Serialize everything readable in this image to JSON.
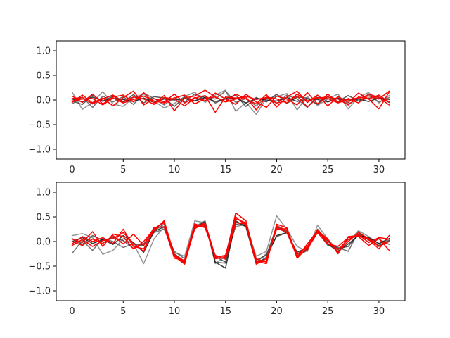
{
  "chart_data": [
    {
      "type": "line",
      "xlim": [
        -1.55,
        32.55
      ],
      "ylim": [
        -1.2,
        1.2
      ],
      "xticks": [
        0,
        5,
        10,
        15,
        20,
        25,
        30
      ],
      "xtick_labels": [
        "0",
        "5",
        "10",
        "15",
        "20",
        "25",
        "30"
      ],
      "yticks": [
        -1.0,
        -0.5,
        0.0,
        0.5,
        1.0
      ],
      "ytick_labels": [
        "−1.0",
        "−0.5",
        "0.0",
        "0.5",
        "1.0"
      ],
      "x": [
        0,
        1,
        2,
        3,
        4,
        5,
        6,
        7,
        8,
        9,
        10,
        11,
        12,
        13,
        14,
        15,
        16,
        17,
        18,
        19,
        20,
        21,
        22,
        23,
        24,
        25,
        26,
        27,
        28,
        29,
        30,
        31
      ],
      "series": [
        {
          "color": "#808080",
          "values": [
            0.16,
            -0.19,
            -0.05,
            0.17,
            -0.08,
            -0.13,
            0.05,
            0.12,
            -0.02,
            -0.16,
            -0.07,
            0.07,
            0.16,
            -0.05,
            0.1,
            0.2,
            -0.23,
            -0.05,
            -0.29,
            0.03,
            0.07,
            0.13,
            -0.2,
            0.07,
            -0.11,
            0.02,
            0.12,
            -0.18,
            0.06,
            0.15,
            -0.06,
            0.09
          ]
        },
        {
          "color": "#5a5a5a",
          "values": [
            -0.08,
            0.06,
            -0.15,
            0.08,
            -0.04,
            0.07,
            -0.09,
            0.14,
            0.03,
            -0.1,
            0.05,
            -0.04,
            0.12,
            0.05,
            0.02,
            0.18,
            -0.05,
            0.03,
            -0.12,
            0.06,
            -0.07,
            0.1,
            0.02,
            -0.15,
            0.09,
            -0.03,
            0.05,
            -0.08,
            0.02,
            0.11,
            -0.04,
            0.05
          ]
        },
        {
          "color": "#3c3c3c",
          "values": [
            -0.02,
            -0.09,
            0.1,
            -0.03,
            0.08,
            -0.05,
            0.11,
            -0.06,
            0.07,
            0.04,
            -0.13,
            0.06,
            -0.02,
            0.09,
            -0.06,
            0.03,
            0.1,
            -0.13,
            0.05,
            -0.04,
            0.12,
            -0.07,
            0.06,
            0.04,
            -0.09,
            0.07,
            -0.03,
            0.09,
            -0.02,
            0.04,
            0.06,
            -0.05
          ]
        },
        {
          "color": "#1a1a1a",
          "values": [
            0.02,
            -0.04,
            0.06,
            -0.02,
            0.03,
            0.01,
            -0.03,
            0.04,
            -0.05,
            0.02,
            0.0,
            0.03,
            -0.02,
            0.05,
            -0.03,
            0.02,
            0.04,
            -0.06,
            0.03,
            0.0,
            -0.02,
            0.05,
            -0.03,
            0.02,
            0.01,
            -0.04,
            0.03,
            0.0,
            0.02,
            -0.03,
            0.04,
            0.01
          ]
        },
        {
          "color": "#ff0000",
          "values": [
            0.08,
            -0.05,
            0.12,
            -0.08,
            0.06,
            0.1,
            -0.04,
            0.15,
            -0.06,
            0.09,
            -0.22,
            0.04,
            0.08,
            0.2,
            0.06,
            -0.03,
            0.12,
            0.02,
            -0.08,
            0.11,
            -0.14,
            0.06,
            0.18,
            -0.05,
            0.1,
            -0.12,
            0.07,
            -0.05,
            0.14,
            0.02,
            -0.18,
            0.16
          ]
        },
        {
          "color": "#ff0000",
          "values": [
            -0.05,
            0.1,
            -0.06,
            0.04,
            -0.12,
            0.05,
            0.18,
            -0.1,
            0.03,
            -0.04,
            0.12,
            -0.06,
            0.05,
            -0.02,
            0.14,
            0.02,
            -0.09,
            0.12,
            -0.04,
            -0.15,
            0.08,
            0.02,
            -0.1,
            0.15,
            -0.08,
            0.12,
            -0.05,
            0.03,
            -0.06,
            0.12,
            0.05,
            -0.1
          ]
        },
        {
          "color": "#ff0000",
          "values": [
            0.03,
            0.05,
            -0.08,
            0.02,
            0.1,
            -0.03,
            0.06,
            0.02,
            -0.09,
            0.05,
            0.02,
            -0.12,
            0.04,
            0.09,
            -0.25,
            0.06,
            0.04,
            0.06,
            -0.2,
            0.06,
            0.02,
            -0.06,
            0.12,
            -0.02,
            0.05,
            0.03,
            -0.06,
            0.01,
            0.04,
            0.08,
            0.02,
            0.18
          ]
        },
        {
          "color": "#ff0000",
          "values": [
            -0.02,
            0.02,
            0.03,
            -0.1,
            0.04,
            -0.06,
            0.01,
            0.08,
            -0.02,
            -0.06,
            0.04,
            0.1,
            -0.08,
            0.03,
            0.06,
            -0.04,
            0.02,
            0.08,
            0.01,
            0.05,
            -0.06,
            -0.02,
            0.08,
            -0.14,
            0.04,
            0.06,
            0.02,
            -0.1,
            0.06,
            0.02,
            0.1,
            -0.04
          ]
        }
      ]
    },
    {
      "type": "line",
      "xlim": [
        -1.55,
        32.55
      ],
      "ylim": [
        -1.2,
        1.2
      ],
      "xticks": [
        0,
        5,
        10,
        15,
        20,
        25,
        30
      ],
      "xtick_labels": [
        "0",
        "5",
        "10",
        "15",
        "20",
        "25",
        "30"
      ],
      "yticks": [
        -1.0,
        -0.5,
        0.0,
        0.5,
        1.0
      ],
      "ytick_labels": [
        "−1.0",
        "−0.5",
        "0.0",
        "0.5",
        "1.0"
      ],
      "x": [
        0,
        1,
        2,
        3,
        4,
        5,
        6,
        7,
        8,
        9,
        10,
        11,
        12,
        13,
        14,
        15,
        16,
        17,
        18,
        19,
        20,
        21,
        22,
        23,
        24,
        25,
        26,
        27,
        28,
        29,
        30,
        31
      ],
      "series": [
        {
          "color": "#808080",
          "values": [
            0.12,
            0.16,
            0.08,
            -0.26,
            -0.18,
            0.06,
            -0.05,
            -0.45,
            0.05,
            0.3,
            -0.22,
            -0.3,
            0.42,
            0.38,
            -0.45,
            -0.3,
            0.3,
            0.35,
            -0.3,
            -0.2,
            0.52,
            0.25,
            -0.1,
            -0.2,
            0.33,
            0.05,
            -0.18,
            0.0,
            0.22,
            0.1,
            -0.05,
            0.03
          ]
        },
        {
          "color": "#5a5a5a",
          "values": [
            -0.24,
            0.02,
            -0.18,
            0.06,
            0.0,
            -0.12,
            -0.05,
            -0.08,
            0.18,
            0.25,
            -0.2,
            -0.35,
            0.3,
            0.42,
            -0.42,
            -0.44,
            0.4,
            0.3,
            -0.42,
            -0.25,
            0.1,
            0.18,
            -0.28,
            -0.1,
            0.2,
            -0.08,
            -0.12,
            -0.2,
            0.2,
            0.02,
            0.05,
            -0.06
          ]
        },
        {
          "color": "#3c3c3c",
          "values": [
            0.06,
            -0.06,
            0.12,
            0.02,
            0.08,
            0.02,
            -0.14,
            -0.05,
            0.22,
            0.35,
            -0.25,
            -0.4,
            0.35,
            0.3,
            -0.3,
            -0.42,
            0.35,
            0.32,
            -0.38,
            -0.28,
            0.3,
            0.2,
            -0.3,
            -0.18,
            0.25,
            0.0,
            -0.14,
            -0.1,
            0.15,
            0.06,
            -0.08,
            0.02
          ]
        },
        {
          "color": "#1a1a1a",
          "values": [
            0.0,
            0.08,
            -0.04,
            0.04,
            -0.06,
            0.12,
            -0.02,
            -0.22,
            0.2,
            0.3,
            -0.3,
            -0.42,
            0.28,
            0.4,
            -0.42,
            -0.54,
            0.42,
            0.3,
            -0.45,
            -0.32,
            0.12,
            0.18,
            -0.22,
            -0.12,
            0.18,
            -0.05,
            -0.2,
            -0.05,
            0.12,
            0.08,
            -0.04,
            0.06
          ]
        },
        {
          "color": "#ff0000",
          "values": [
            0.05,
            -0.02,
            0.2,
            -0.1,
            0.15,
            0.1,
            -0.15,
            0.0,
            0.25,
            0.4,
            -0.3,
            -0.46,
            0.3,
            0.32,
            -0.35,
            -0.32,
            0.58,
            0.42,
            -0.4,
            -0.45,
            0.35,
            0.28,
            -0.32,
            -0.05,
            0.22,
            0.05,
            -0.25,
            0.1,
            0.12,
            0.04,
            -0.15,
            0.12
          ]
        },
        {
          "color": "#ff0000",
          "values": [
            -0.05,
            0.1,
            0.0,
            0.08,
            -0.04,
            0.25,
            -0.1,
            -0.15,
            0.22,
            0.42,
            -0.28,
            -0.44,
            0.32,
            0.35,
            -0.32,
            -0.28,
            0.5,
            0.32,
            -0.35,
            -0.42,
            0.28,
            0.18,
            -0.3,
            -0.15,
            0.18,
            -0.05,
            -0.1,
            0.08,
            0.1,
            -0.08,
            0.06,
            -0.18
          ]
        },
        {
          "color": "#ff0000",
          "values": [
            0.0,
            -0.08,
            0.05,
            -0.04,
            0.12,
            -0.05,
            0.15,
            -0.08,
            0.28,
            0.3,
            -0.34,
            -0.38,
            0.36,
            0.28,
            -0.28,
            -0.36,
            0.38,
            0.36,
            -0.46,
            -0.35,
            0.25,
            0.26,
            -0.34,
            -0.12,
            0.24,
            -0.04,
            -0.16,
            0.04,
            0.14,
            -0.02,
            0.08,
            0.05
          ]
        },
        {
          "color": "#ff0000",
          "values": [
            -0.08,
            0.04,
            -0.1,
            0.02,
            0.06,
            0.18,
            -0.04,
            -0.2,
            0.26,
            0.38,
            -0.26,
            -0.42,
            0.26,
            0.38,
            -0.3,
            -0.3,
            0.46,
            0.38,
            -0.42,
            -0.4,
            0.32,
            0.22,
            -0.26,
            -0.1,
            0.2,
            0.02,
            -0.22,
            0.0,
            0.18,
            0.06,
            -0.1,
            0.0
          ]
        }
      ]
    }
  ]
}
